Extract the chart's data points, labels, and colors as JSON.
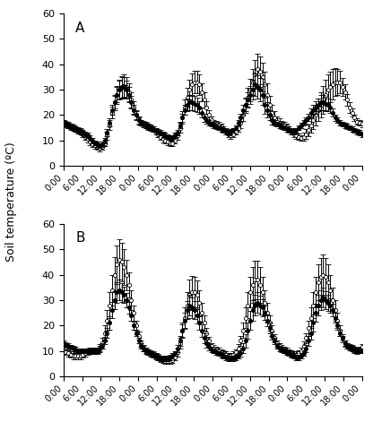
{
  "panel_A": {
    "label": "A",
    "disturbed_mean": [
      17,
      16.5,
      16,
      15.5,
      15,
      14.5,
      14,
      13.5,
      13,
      12.5,
      12,
      11,
      10,
      9,
      8.5,
      8,
      8.5,
      10,
      13,
      17,
      22,
      25,
      28,
      30,
      31,
      31,
      30,
      28,
      25,
      22,
      20,
      18,
      17,
      16.5,
      16,
      15.5,
      15,
      14.5,
      14,
      13.5,
      13,
      12.5,
      12,
      11.5,
      11,
      11,
      12,
      13,
      16,
      19,
      22,
      24,
      25,
      25,
      24.5,
      24,
      23,
      21,
      19,
      18,
      17,
      16.5,
      16,
      15.5,
      15,
      14.5,
      14,
      13.5,
      13,
      13.5,
      14,
      15,
      17,
      19,
      22,
      24,
      26,
      28,
      30,
      32,
      31,
      30,
      28,
      24,
      22,
      20,
      18,
      17,
      16.5,
      16,
      15.5,
      15,
      14.5,
      14,
      13.5,
      13.5,
      14,
      15,
      16,
      17,
      18,
      19,
      21,
      22,
      23,
      24,
      25,
      25,
      24.5,
      24,
      23,
      21,
      19,
      18,
      17,
      16.5,
      16,
      15.5,
      15,
      14.5,
      14,
      13.5,
      13,
      12.5,
      12,
      11.5,
      11
    ],
    "disturbed_se": [
      0.5,
      0.5,
      0.5,
      0.5,
      0.5,
      0.5,
      0.5,
      0.5,
      0.5,
      0.5,
      0.5,
      0.5,
      0.5,
      0.5,
      0.5,
      0.5,
      0.5,
      0.5,
      0.7,
      0.8,
      1.0,
      1.2,
      1.5,
      1.8,
      2.0,
      2.0,
      1.8,
      1.5,
      1.2,
      1.0,
      0.8,
      0.6,
      0.5,
      0.5,
      0.5,
      0.5,
      0.5,
      0.5,
      0.5,
      0.5,
      0.5,
      0.5,
      0.5,
      0.5,
      0.5,
      0.5,
      0.5,
      0.5,
      0.6,
      0.8,
      1.0,
      1.2,
      1.5,
      1.5,
      1.5,
      1.4,
      1.2,
      1.0,
      0.8,
      0.6,
      0.5,
      0.5,
      0.5,
      0.5,
      0.5,
      0.5,
      0.5,
      0.5,
      0.5,
      0.5,
      0.5,
      0.5,
      0.6,
      0.8,
      1.0,
      1.2,
      1.5,
      1.8,
      2.0,
      2.2,
      2.3,
      2.3,
      2.0,
      1.8,
      1.5,
      1.0,
      0.8,
      0.6,
      0.5,
      0.5,
      0.5,
      0.5,
      0.5,
      0.5,
      0.5,
      0.5,
      0.5,
      0.5,
      0.5,
      0.5,
      0.6,
      0.7,
      0.8,
      1.0,
      1.2,
      1.3,
      1.5,
      1.5,
      1.4,
      1.2,
      1.0,
      0.8,
      0.6,
      0.5,
      0.5,
      0.5,
      0.5,
      0.5,
      0.5,
      0.5,
      0.5,
      0.5,
      0.5,
      0.5
    ],
    "nondisturbed_mean": [
      17,
      16.5,
      16,
      15.5,
      15,
      14.5,
      14,
      13.5,
      12.5,
      11.5,
      10.5,
      9.5,
      8.5,
      8,
      7.5,
      7,
      7.5,
      9,
      12,
      16,
      21,
      25,
      28,
      30,
      31,
      31.5,
      31,
      29,
      26,
      23,
      20,
      18,
      17,
      16.5,
      16,
      15.5,
      15,
      14.5,
      13.5,
      12.5,
      11.5,
      10.5,
      10,
      9.5,
      9,
      9,
      10,
      12,
      15,
      19,
      23,
      27,
      30,
      32,
      33,
      33,
      32,
      29,
      26,
      23,
      20,
      18,
      17,
      16.5,
      16,
      15.5,
      14.5,
      13.5,
      12.5,
      12,
      12.5,
      13.5,
      15,
      17,
      20,
      24,
      27,
      30,
      33,
      36,
      38,
      37,
      35,
      32,
      28,
      24,
      21,
      19,
      17.5,
      17,
      16.5,
      16,
      15.5,
      14.5,
      13.5,
      12.5,
      12,
      11.5,
      11,
      11.5,
      12.5,
      14,
      16,
      18,
      20,
      22,
      24,
      26,
      28,
      30,
      31,
      32,
      33,
      33,
      33,
      31,
      29,
      26,
      23,
      21,
      19,
      17.5,
      17,
      16.5,
      16,
      15.5,
      14.5,
      13.5,
      12.5
    ],
    "nondisturbed_se": [
      0.6,
      0.6,
      0.6,
      0.6,
      0.6,
      0.6,
      0.6,
      0.6,
      0.6,
      0.6,
      0.6,
      0.6,
      0.6,
      0.6,
      0.6,
      0.6,
      0.6,
      0.6,
      0.8,
      1.0,
      1.2,
      1.5,
      1.8,
      2.0,
      2.2,
      2.2,
      2.0,
      1.8,
      1.5,
      1.2,
      1.0,
      0.8,
      0.6,
      0.6,
      0.6,
      0.6,
      0.6,
      0.6,
      0.6,
      0.6,
      0.6,
      0.6,
      0.6,
      0.6,
      0.6,
      0.6,
      0.6,
      0.8,
      1.0,
      1.2,
      1.5,
      1.8,
      2.0,
      2.2,
      2.2,
      2.2,
      2.0,
      1.8,
      1.5,
      1.2,
      1.0,
      0.8,
      0.6,
      0.6,
      0.6,
      0.6,
      0.6,
      0.6,
      0.6,
      0.6,
      0.6,
      0.6,
      0.8,
      1.0,
      1.2,
      1.5,
      1.8,
      2.2,
      2.5,
      2.8,
      3.0,
      3.0,
      2.8,
      2.5,
      2.2,
      1.8,
      1.5,
      1.2,
      1.0,
      0.8,
      0.6,
      0.6,
      0.6,
      0.6,
      0.6,
      0.6,
      0.6,
      0.6,
      0.6,
      0.8,
      1.0,
      1.2,
      1.5,
      1.8,
      2.0,
      2.2,
      2.5,
      2.8,
      3.0,
      3.0,
      3.0,
      3.0,
      2.8,
      2.5,
      2.2,
      1.8,
      1.5,
      1.2,
      1.0,
      0.8,
      0.6,
      0.6,
      0.6,
      0.6,
      0.6,
      0.6,
      0.6
    ]
  },
  "panel_B": {
    "label": "B",
    "disturbed_mean": [
      13,
      12.5,
      12,
      11.5,
      11,
      10.5,
      10,
      10,
      10,
      10,
      10,
      10,
      10,
      10,
      10,
      11,
      12,
      14,
      17,
      21,
      26,
      30,
      33,
      34,
      33,
      32,
      30,
      27,
      24,
      20,
      17,
      14,
      12,
      11,
      10,
      9.5,
      9,
      8.5,
      8,
      7.5,
      7,
      7,
      7,
      7,
      7.5,
      8,
      9,
      11,
      14,
      18,
      22,
      26,
      28,
      27,
      26,
      24,
      21,
      18,
      15,
      13,
      11.5,
      10.5,
      10,
      9.5,
      9,
      8.5,
      8,
      7.5,
      7,
      7,
      7,
      7.5,
      8,
      9,
      11,
      14,
      18,
      22,
      26,
      28,
      29,
      28,
      27,
      25,
      22,
      19,
      16,
      14,
      12,
      11,
      10.5,
      10,
      9.5,
      9,
      8.5,
      8,
      7.5,
      7.5,
      8,
      9,
      11,
      14,
      17,
      21,
      25,
      28,
      30,
      31,
      30,
      29,
      28,
      26,
      23,
      20,
      17,
      15,
      13,
      12,
      11.5,
      11,
      10.5,
      10,
      10,
      10,
      12,
      13
    ],
    "disturbed_se": [
      0.5,
      0.5,
      0.5,
      0.5,
      0.5,
      0.5,
      0.5,
      0.5,
      0.5,
      0.5,
      0.5,
      0.5,
      0.5,
      0.5,
      0.5,
      0.5,
      0.5,
      0.7,
      1.0,
      1.3,
      1.6,
      1.8,
      2.0,
      2.0,
      1.8,
      1.6,
      1.4,
      1.2,
      1.0,
      0.8,
      0.6,
      0.5,
      0.5,
      0.5,
      0.5,
      0.5,
      0.5,
      0.5,
      0.5,
      0.5,
      0.5,
      0.5,
      0.5,
      0.5,
      0.5,
      0.5,
      0.5,
      0.7,
      1.0,
      1.3,
      1.6,
      1.8,
      2.0,
      2.0,
      1.8,
      1.6,
      1.4,
      1.2,
      1.0,
      0.8,
      0.6,
      0.5,
      0.5,
      0.5,
      0.5,
      0.5,
      0.5,
      0.5,
      0.5,
      0.5,
      0.5,
      0.5,
      0.5,
      0.7,
      1.0,
      1.3,
      1.6,
      1.8,
      2.0,
      2.0,
      2.0,
      1.8,
      1.6,
      1.4,
      1.2,
      1.0,
      0.8,
      0.6,
      0.5,
      0.5,
      0.5,
      0.5,
      0.5,
      0.5,
      0.5,
      0.5,
      0.5,
      0.5,
      0.5,
      0.5,
      0.7,
      1.0,
      1.3,
      1.6,
      1.8,
      2.0,
      2.0,
      2.0,
      1.8,
      1.6,
      1.4,
      1.2,
      1.0,
      0.8,
      0.6,
      0.5,
      0.5,
      0.5,
      0.5,
      0.5,
      0.5,
      0.5,
      0.5,
      0.5
    ],
    "nondisturbed_mean": [
      10,
      9.5,
      9,
      8.5,
      8,
      8,
      8,
      8,
      8.5,
      9,
      9.5,
      10,
      10,
      10,
      10,
      11,
      13,
      17,
      22,
      28,
      34,
      40,
      44,
      46,
      45,
      43,
      40,
      36,
      30,
      25,
      20,
      16,
      13,
      11,
      10,
      9.5,
      9,
      8.5,
      8,
      7.5,
      7,
      6.5,
      6,
      6,
      6,
      6.5,
      7.5,
      9.5,
      13,
      18,
      23,
      28,
      32,
      33,
      33,
      32,
      29,
      25,
      21,
      17,
      14,
      12,
      11,
      10.5,
      10,
      9.5,
      9,
      8.5,
      8,
      8,
      8.5,
      9.5,
      11,
      14,
      18,
      23,
      28,
      33,
      36,
      38,
      38,
      36,
      33,
      29,
      25,
      21,
      18,
      15,
      13,
      12,
      11,
      10.5,
      10,
      9.5,
      9,
      8.5,
      8.5,
      9,
      10,
      12,
      15,
      19,
      23,
      28,
      33,
      37,
      39,
      40,
      39,
      37,
      34,
      30,
      26,
      22,
      18,
      15,
      13,
      12,
      11.5,
      11,
      10.5,
      10,
      10.5,
      11.5,
      12.5
    ],
    "nondisturbed_se": [
      0.6,
      0.6,
      0.6,
      0.6,
      0.6,
      0.6,
      0.6,
      0.6,
      0.6,
      0.6,
      0.6,
      0.6,
      0.6,
      0.6,
      0.6,
      0.8,
      1.0,
      1.5,
      2.0,
      2.5,
      3.0,
      3.5,
      3.8,
      4.0,
      3.8,
      3.5,
      3.0,
      2.5,
      2.0,
      1.5,
      1.0,
      0.8,
      0.6,
      0.6,
      0.6,
      0.6,
      0.6,
      0.6,
      0.6,
      0.6,
      0.6,
      0.6,
      0.6,
      0.6,
      0.6,
      0.6,
      0.6,
      0.8,
      1.0,
      1.5,
      2.0,
      2.5,
      3.0,
      3.2,
      3.0,
      2.8,
      2.5,
      2.0,
      1.5,
      1.0,
      0.8,
      0.6,
      0.6,
      0.6,
      0.6,
      0.6,
      0.6,
      0.6,
      0.6,
      0.6,
      0.6,
      0.6,
      0.8,
      1.0,
      1.5,
      2.0,
      2.5,
      3.0,
      3.5,
      3.8,
      3.8,
      3.5,
      3.0,
      2.5,
      2.0,
      1.5,
      1.0,
      0.8,
      0.6,
      0.6,
      0.6,
      0.6,
      0.6,
      0.6,
      0.6,
      0.6,
      0.6,
      0.6,
      0.6,
      0.8,
      1.0,
      1.5,
      2.0,
      2.5,
      3.0,
      3.5,
      3.8,
      4.0,
      3.8,
      3.5,
      3.0,
      2.5,
      2.0,
      1.5,
      1.0,
      0.8,
      0.6,
      0.6,
      0.6,
      0.6,
      0.6,
      0.6,
      0.6,
      0.6
    ]
  },
  "ylim": [
    0,
    60
  ],
  "yticks": [
    0,
    10,
    20,
    30,
    40,
    50,
    60
  ],
  "xtick_labels": [
    "0:00",
    "6:00",
    "12:00",
    "18:00",
    "0:00",
    "6:00",
    "12:00",
    "18:00",
    "0:00",
    "6:00",
    "12:00",
    "18:00",
    "0:00",
    "6:00",
    "12:00",
    "18:00",
    "0:00"
  ],
  "ylabel": "Soil temperature (ºC)",
  "disturbed_color": "black",
  "nondisturbed_facecolor": "white",
  "nondisturbed_edgecolor": "black",
  "marker_size": 3,
  "linewidth": 0.8,
  "capsize": 2,
  "elinewidth": 0.7
}
